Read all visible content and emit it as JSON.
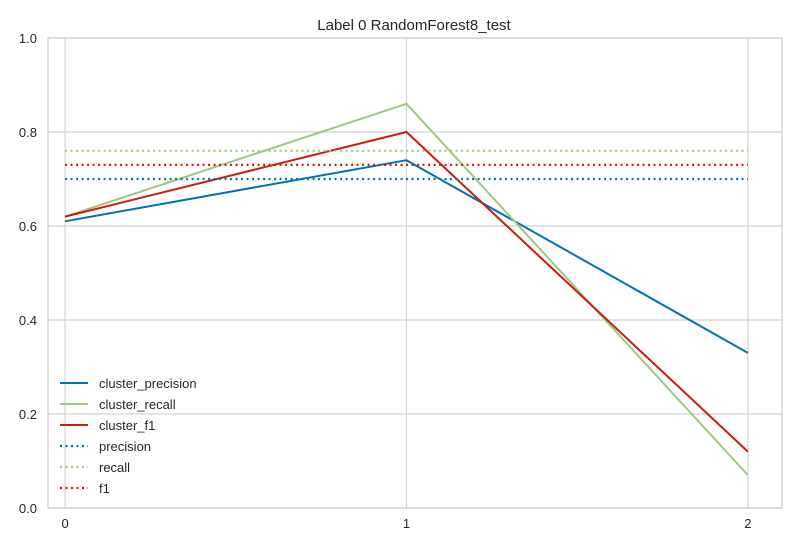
{
  "chart_data": {
    "type": "line",
    "title": "Label 0 RandomForest8_test",
    "xlabel": "",
    "ylabel": "",
    "x": [
      0,
      1,
      2
    ],
    "x_tick_labels": [
      "0",
      "1",
      "2"
    ],
    "y_tick_labels": [
      "0.0",
      "0.2",
      "0.4",
      "0.6",
      "0.8",
      "1.0"
    ],
    "xlim": [
      -0.05,
      2.1
    ],
    "ylim": [
      0,
      1.0
    ],
    "grid": true,
    "legend_position": "lower-left",
    "series": [
      {
        "name": "cluster_precision",
        "values": [
          0.61,
          0.74,
          0.33
        ],
        "color": "#0072b2",
        "style": "solid"
      },
      {
        "name": "cluster_recall",
        "values": [
          0.62,
          0.86,
          0.07
        ],
        "color": "#9dc87f",
        "style": "solid"
      },
      {
        "name": "cluster_f1",
        "values": [
          0.62,
          0.8,
          0.12
        ],
        "color": "#c81e0f",
        "style": "solid"
      },
      {
        "name": "precision",
        "values": [
          0.7,
          0.7,
          0.7
        ],
        "color": "#0072b2",
        "style": "dotted"
      },
      {
        "name": "recall",
        "values": [
          0.76,
          0.76,
          0.76
        ],
        "color": "#9dc87f",
        "style": "dotted"
      },
      {
        "name": "f1",
        "values": [
          0.73,
          0.73,
          0.73
        ],
        "color": "#c81e0f",
        "style": "dotted"
      }
    ]
  }
}
